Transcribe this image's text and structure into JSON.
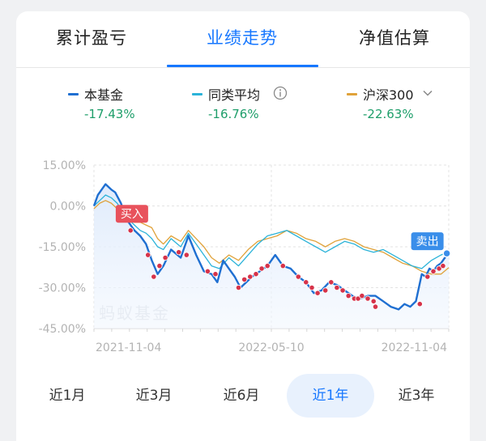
{
  "tabs": [
    {
      "label": "累计盈亏"
    },
    {
      "label": "业绩走势"
    },
    {
      "label": "净值估算"
    }
  ],
  "legend": [
    {
      "name": "本基金",
      "value": "-17.43%",
      "color": "#1f6fd1"
    },
    {
      "name": "同类平均",
      "value": "-16.76%",
      "color": "#2bb3d9",
      "icon": "info-icon"
    },
    {
      "name": "沪深300",
      "value": "-22.63%",
      "color": "#e0a23a",
      "icon": "chevron-down-icon"
    }
  ],
  "watermark": "蚂蚁基金",
  "ranges": [
    {
      "label": "近1月"
    },
    {
      "label": "近3月"
    },
    {
      "label": "近6月"
    },
    {
      "label": "近1年",
      "active": true
    },
    {
      "label": "近3年"
    }
  ],
  "chart_data": {
    "type": "line",
    "y_axis": {
      "ticks": [
        "15.00%",
        "0.00%",
        "-15.00%",
        "-30.00%",
        "-45.00%"
      ],
      "min": -45,
      "max": 15
    },
    "x_axis": {
      "ticks": [
        "2021-11-04",
        "2022-05-10",
        "2022-11-04"
      ],
      "min": 0,
      "max": 368
    },
    "grid": true,
    "legend_position": "top",
    "annotations": [
      {
        "label": "买入",
        "color": "#e8525c",
        "x": 31,
        "y": -2
      },
      {
        "label": "卖出",
        "color": "#3a8eea",
        "x": 366,
        "y": -17.43
      }
    ],
    "series": [
      {
        "name": "本基金",
        "color": "#1f6fd1",
        "x": [
          0,
          4,
          8,
          12,
          18,
          22,
          28,
          32,
          36,
          42,
          48,
          54,
          60,
          66,
          72,
          80,
          90,
          98,
          106,
          114,
          122,
          128,
          134,
          140,
          146,
          152,
          158,
          164,
          172,
          180,
          188,
          196,
          204,
          212,
          220,
          228,
          236,
          244,
          252,
          260,
          268,
          276,
          284,
          292,
          300,
          308,
          316,
          322,
          328,
          334,
          340,
          344,
          348,
          352,
          356,
          360,
          364,
          368
        ],
        "y": [
          0,
          4,
          6,
          8,
          6,
          5,
          1,
          -3,
          -6,
          -9,
          -11,
          -14,
          -20,
          -25,
          -22,
          -16,
          -19,
          -11,
          -18,
          -24,
          -25,
          -28,
          -20,
          -23,
          -26,
          -30,
          -28,
          -26,
          -24,
          -22,
          -18,
          -22,
          -23,
          -26,
          -28,
          -32,
          -31,
          -28,
          -29,
          -31,
          -33,
          -34,
          -33,
          -33,
          -35,
          -37,
          -38,
          -36,
          -37,
          -35,
          -25,
          -26,
          -23,
          -24,
          -22,
          -21,
          -19,
          -17.43
        ]
      },
      {
        "name": "同类平均",
        "color": "#2bb3d9",
        "x": [
          0,
          6,
          12,
          18,
          24,
          30,
          36,
          42,
          48,
          54,
          60,
          66,
          72,
          80,
          90,
          98,
          106,
          114,
          122,
          130,
          140,
          150,
          160,
          170,
          180,
          190,
          200,
          210,
          220,
          230,
          240,
          250,
          260,
          270,
          280,
          290,
          300,
          310,
          320,
          330,
          340,
          350,
          360,
          368
        ],
        "y": [
          0,
          2,
          4,
          3,
          1,
          -2,
          -5,
          -7,
          -9,
          -10,
          -12,
          -15,
          -16,
          -12,
          -15,
          -10,
          -14,
          -18,
          -22,
          -23,
          -19,
          -22,
          -18,
          -14,
          -11,
          -10,
          -9,
          -11,
          -13,
          -15,
          -17,
          -15,
          -13,
          -14,
          -16,
          -17,
          -16,
          -18,
          -20,
          -22,
          -23,
          -20,
          -18,
          -16.76
        ]
      },
      {
        "name": "沪深300",
        "color": "#e0a23a",
        "x": [
          0,
          6,
          12,
          18,
          24,
          30,
          36,
          42,
          48,
          54,
          60,
          66,
          72,
          80,
          90,
          98,
          106,
          114,
          122,
          130,
          140,
          150,
          160,
          170,
          180,
          190,
          200,
          210,
          220,
          230,
          240,
          250,
          260,
          270,
          280,
          290,
          300,
          310,
          320,
          330,
          340,
          350,
          360,
          368
        ],
        "y": [
          -1,
          1,
          2,
          1,
          -1,
          -3,
          -5,
          -6,
          -6,
          -7,
          -8,
          -12,
          -14,
          -11,
          -13,
          -9,
          -12,
          -15,
          -19,
          -21,
          -18,
          -20,
          -16,
          -13,
          -12,
          -11,
          -9,
          -10,
          -12,
          -13,
          -15,
          -13,
          -12,
          -13,
          -15,
          -16,
          -17,
          -19,
          -21,
          -22,
          -24,
          -25,
          -25,
          -22.63
        ]
      }
    ],
    "markers": {
      "x": [
        38,
        56,
        62,
        68,
        74,
        88,
        96,
        118,
        126,
        150,
        156,
        162,
        168,
        174,
        180,
        196,
        212,
        220,
        226,
        232,
        240,
        246,
        252,
        258,
        264,
        270,
        274,
        278,
        284,
        290,
        292,
        338,
        346,
        352,
        358,
        362
      ],
      "y": [
        -9,
        -18,
        -26,
        -22,
        -19,
        -17,
        -18,
        -24,
        -25,
        -30,
        -27,
        -26,
        -25,
        -23,
        -22,
        -22,
        -26,
        -28,
        -30,
        -32,
        -31,
        -28,
        -30,
        -31,
        -33,
        -34,
        -34,
        -33,
        -34,
        -35,
        -37,
        -36,
        -26,
        -24,
        -23,
        -22
      ]
    }
  }
}
